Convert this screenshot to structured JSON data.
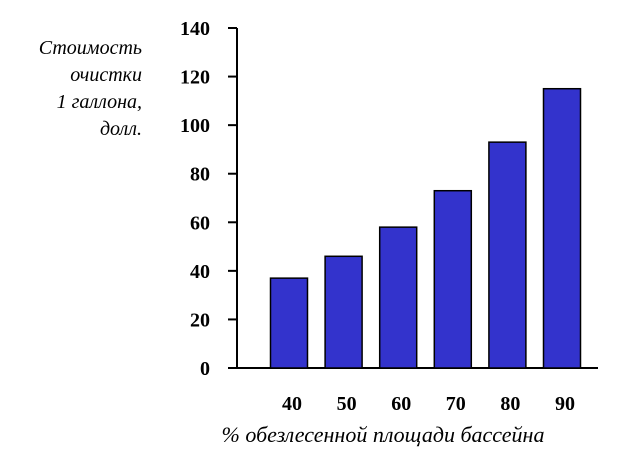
{
  "chart_data": {
    "type": "bar",
    "title": "",
    "ylabel": "Стоимость\nочистки\n1 галлона,\nдолл.",
    "xlabel": "% обезлесенной площади бассейна",
    "categories": [
      "40",
      "50",
      "60",
      "70",
      "80",
      "90"
    ],
    "values": [
      37,
      46,
      58,
      73,
      93,
      115
    ],
    "ylim": [
      0,
      140
    ],
    "yticks": [
      0,
      20,
      40,
      60,
      80,
      100,
      120,
      140
    ],
    "grid": false,
    "legend": "none",
    "bar_color": "#3333cc"
  }
}
